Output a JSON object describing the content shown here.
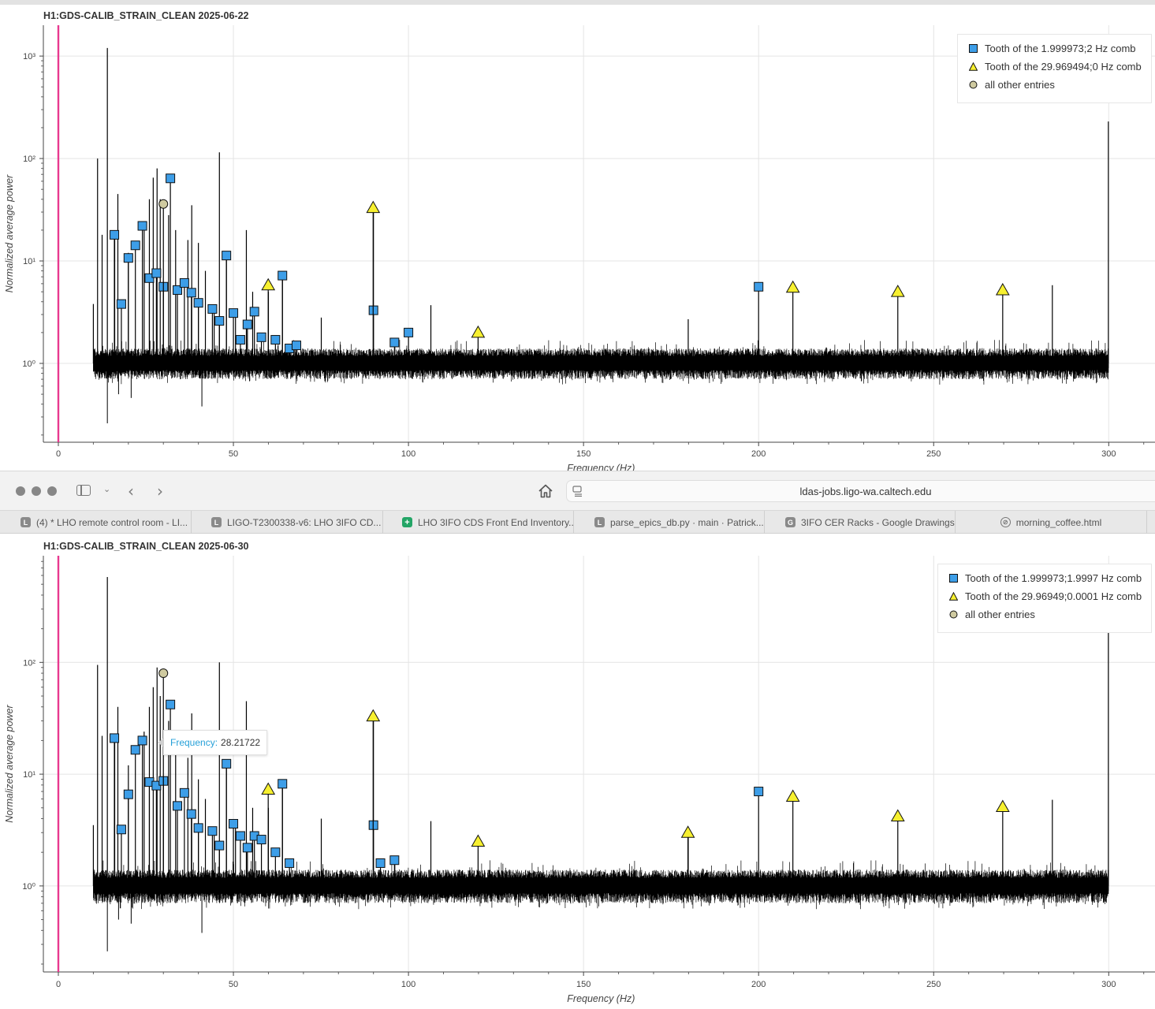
{
  "panels": [
    {
      "title": "H1:GDS-CALIB_STRAIN_CLEAN 2025-06-22",
      "xlabel": "Frequency (Hz)",
      "ylabel": "Normalized average power",
      "legend": [
        {
          "marker": "square",
          "label": "Tooth of the 1.999973;2 Hz comb"
        },
        {
          "marker": "triangle",
          "label": "Tooth of the 29.969494;0 Hz comb"
        },
        {
          "marker": "circle",
          "label": "all other entries"
        }
      ]
    },
    {
      "title": "H1:GDS-CALIB_STRAIN_CLEAN 2025-06-30",
      "xlabel": "Frequency (Hz)",
      "ylabel": "Normalized average power",
      "legend": [
        {
          "marker": "square",
          "label": "Tooth of the 1.999973;1.9997 Hz comb"
        },
        {
          "marker": "triangle",
          "label": "Tooth of the 29.96949;0.0001 Hz comb"
        },
        {
          "marker": "circle",
          "label": "all other entries"
        }
      ],
      "tooltip": {
        "key": "Frequency:",
        "value": "28.21722"
      }
    }
  ],
  "browser": {
    "url": "ldas-jobs.ligo-wa.caltech.edu",
    "tabs": [
      {
        "icon": "L",
        "label": "(4) * LHO remote control room - LI..."
      },
      {
        "icon": "L",
        "label": "LIGO-T2300338-v6: LHO 3IFO CD..."
      },
      {
        "icon": "sheets",
        "label": "LHO 3IFO CDS Front End Inventory..."
      },
      {
        "icon": "L",
        "label": "parse_epics_db.py · main · Patrick..."
      },
      {
        "icon": "G",
        "label": "3IFO CER Racks - Google Drawings"
      },
      {
        "icon": "compass",
        "label": "morning_coffee.html"
      }
    ]
  },
  "colors": {
    "square": "#3d9ee8",
    "triangle": "#f7f030",
    "circle": "#cfcaa0",
    "zero_line": "#e8398f",
    "grid": "#e4e4e4"
  },
  "chart_data": [
    {
      "type": "scatter",
      "title": "H1:GDS-CALIB_STRAIN_CLEAN 2025-06-22",
      "xlabel": "Frequency (Hz)",
      "ylabel": "Normalized average power",
      "xlim": [
        -4,
        314
      ],
      "ylim": [
        0.17,
        2000
      ],
      "yscale": "log",
      "x_ticks": [
        0,
        50,
        100,
        150,
        200,
        250,
        300
      ],
      "y_ticks": [
        1,
        10,
        100,
        1000
      ],
      "grid": true,
      "legend_position": "top-right",
      "spectrum_range": [
        10,
        300
      ],
      "baseline": 1.0,
      "tall_lines": [
        [
          10,
          3.8
        ],
        [
          11.2,
          100
        ],
        [
          12.5,
          18
        ],
        [
          14,
          1200
        ],
        [
          16.1,
          18
        ],
        [
          17,
          45
        ],
        [
          20,
          12
        ],
        [
          24.5,
          20
        ],
        [
          26,
          40
        ],
        [
          27.1,
          65
        ],
        [
          28.2,
          80
        ],
        [
          29.1,
          40
        ],
        [
          31.5,
          28
        ],
        [
          33.5,
          20
        ],
        [
          37,
          16
        ],
        [
          38.1,
          35
        ],
        [
          40,
          15
        ],
        [
          42,
          8
        ],
        [
          44.5,
          3.5
        ],
        [
          46,
          115
        ],
        [
          48,
          11.3
        ],
        [
          50.6,
          3.1
        ],
        [
          53.7,
          20
        ],
        [
          55.5,
          5
        ],
        [
          60,
          5
        ],
        [
          64,
          7
        ],
        [
          75.1,
          2.8
        ],
        [
          90,
          32
        ],
        [
          96.1,
          1.6
        ],
        [
          106.4,
          3.7
        ],
        [
          179.9,
          2.7
        ],
        [
          283.9,
          5.8
        ],
        [
          299.9,
          230
        ]
      ],
      "series": [
        {
          "name": "Tooth of the 1.999973;2 Hz comb",
          "marker": "square",
          "points": [
            [
              16,
              18
            ],
            [
              18,
              3.8
            ],
            [
              20,
              10.7
            ],
            [
              22,
              14.2
            ],
            [
              24,
              22
            ],
            [
              26,
              6.8
            ],
            [
              28,
              7.6
            ],
            [
              30,
              5.6
            ],
            [
              32,
              64
            ],
            [
              34,
              5.2
            ],
            [
              36,
              6.1
            ],
            [
              38,
              4.9
            ],
            [
              40,
              3.9
            ],
            [
              44,
              3.4
            ],
            [
              46,
              2.6
            ],
            [
              48,
              11.3
            ],
            [
              50,
              3.1
            ],
            [
              52,
              1.7
            ],
            [
              54,
              2.4
            ],
            [
              56,
              3.2
            ],
            [
              58,
              1.8
            ],
            [
              62,
              1.7
            ],
            [
              64,
              7.2
            ],
            [
              66,
              1.4
            ],
            [
              68,
              1.5
            ],
            [
              90,
              3.3
            ],
            [
              96,
              1.6
            ],
            [
              100,
              2.0
            ],
            [
              200,
              5.6
            ]
          ]
        },
        {
          "name": "Tooth of the 29.969494;0 Hz comb",
          "marker": "triangle",
          "points": [
            [
              59.94,
              5.8
            ],
            [
              89.91,
              33
            ],
            [
              119.88,
              2.0
            ],
            [
              209.79,
              5.5
            ],
            [
              239.76,
              5.0
            ],
            [
              269.72,
              5.2
            ]
          ]
        },
        {
          "name": "all other entries",
          "marker": "circle",
          "points": [
            [
              30,
              36
            ]
          ]
        }
      ]
    },
    {
      "type": "scatter",
      "title": "H1:GDS-CALIB_STRAIN_CLEAN 2025-06-30",
      "xlabel": "Frequency (Hz)",
      "ylabel": "Normalized average power",
      "xlim": [
        -4,
        314
      ],
      "ylim": [
        0.17,
        900
      ],
      "yscale": "log",
      "x_ticks": [
        0,
        50,
        100,
        150,
        200,
        250,
        300
      ],
      "y_ticks": [
        1,
        10,
        100
      ],
      "grid": true,
      "legend_position": "top-right",
      "spectrum_range": [
        10,
        300
      ],
      "baseline": 1.0,
      "tall_lines": [
        [
          10,
          3.5
        ],
        [
          11.2,
          95
        ],
        [
          12.5,
          22
        ],
        [
          14,
          580
        ],
        [
          16.1,
          22
        ],
        [
          17,
          40
        ],
        [
          20,
          12
        ],
        [
          24.5,
          24
        ],
        [
          26,
          40
        ],
        [
          27.1,
          60
        ],
        [
          28.2,
          90
        ],
        [
          29.1,
          50
        ],
        [
          31.5,
          30
        ],
        [
          33.5,
          18
        ],
        [
          37,
          14
        ],
        [
          38.1,
          35
        ],
        [
          40,
          9
        ],
        [
          42,
          6
        ],
        [
          44.5,
          3.2
        ],
        [
          46,
          100
        ],
        [
          48,
          12.4
        ],
        [
          50.6,
          3.6
        ],
        [
          53.7,
          45
        ],
        [
          55.5,
          5
        ],
        [
          60,
          5
        ],
        [
          64,
          8
        ],
        [
          75.1,
          4.0
        ],
        [
          90,
          32
        ],
        [
          96.1,
          1.6
        ],
        [
          106.4,
          3.8
        ],
        [
          179.9,
          3.0
        ],
        [
          283.9,
          5.9
        ],
        [
          299.9,
          400
        ]
      ],
      "series": [
        {
          "name": "Tooth of the 1.999973;1.9997 Hz comb",
          "marker": "square",
          "points": [
            [
              16,
              21
            ],
            [
              18,
              3.2
            ],
            [
              20,
              6.6
            ],
            [
              22,
              16.5
            ],
            [
              24,
              20
            ],
            [
              26,
              8.5
            ],
            [
              28,
              7.9
            ],
            [
              30,
              8.7
            ],
            [
              32,
              42
            ],
            [
              34,
              5.2
            ],
            [
              36,
              6.8
            ],
            [
              38,
              4.4
            ],
            [
              40,
              3.3
            ],
            [
              44,
              3.1
            ],
            [
              46,
              2.3
            ],
            [
              48,
              12.4
            ],
            [
              50,
              3.6
            ],
            [
              52,
              2.8
            ],
            [
              54,
              2.2
            ],
            [
              56,
              2.8
            ],
            [
              58,
              2.6
            ],
            [
              62,
              2.0
            ],
            [
              64,
              8.2
            ],
            [
              66,
              1.6
            ],
            [
              92,
              1.6
            ],
            [
              96,
              1.7
            ],
            [
              90,
              3.5
            ],
            [
              200,
              7.0
            ]
          ]
        },
        {
          "name": "Tooth of the 29.96949;0.0001 Hz comb",
          "marker": "triangle",
          "points": [
            [
              59.94,
              7.3
            ],
            [
              89.91,
              33
            ],
            [
              119.88,
              2.5
            ],
            [
              179.82,
              3.0
            ],
            [
              209.79,
              6.3
            ],
            [
              239.76,
              4.2
            ],
            [
              269.72,
              5.1
            ]
          ]
        },
        {
          "name": "all other entries",
          "marker": "circle",
          "points": [
            [
              30,
              80
            ]
          ]
        }
      ]
    }
  ]
}
